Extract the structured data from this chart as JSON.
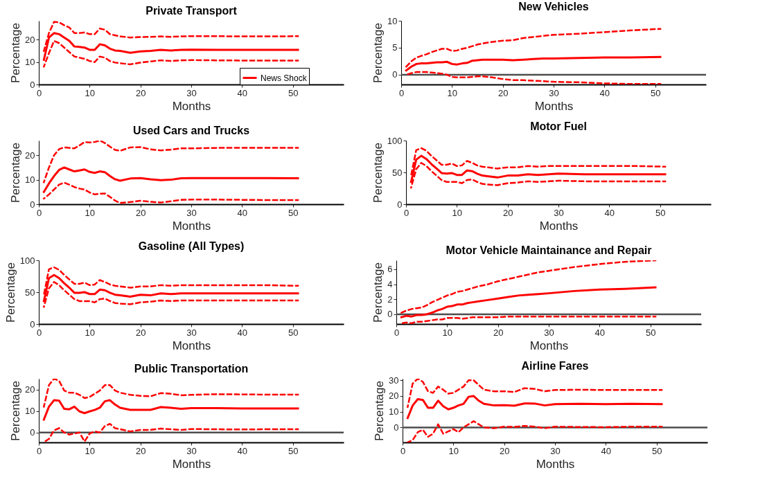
{
  "chart_data": [
    {
      "type": "line",
      "title": "Private Transport",
      "xlabel": "Months",
      "ylabel": "Percentage",
      "xlim": [
        0,
        60
      ],
      "xticks": [
        0,
        10,
        20,
        30,
        40,
        50
      ],
      "ylim": [
        0,
        28.5
      ],
      "yticks": [
        0,
        10,
        20
      ],
      "legend": "bottom right",
      "x": [
        1,
        2,
        3,
        4,
        5,
        6,
        7,
        8,
        9,
        10,
        11,
        12,
        13,
        14,
        15,
        16,
        18,
        20,
        22,
        24,
        26,
        28,
        30,
        35,
        40,
        45,
        51
      ],
      "series": [
        {
          "name": "News Shock",
          "color": "#ff0000",
          "values": [
            11,
            21,
            23,
            22.5,
            21,
            19.5,
            17,
            16.8,
            16.5,
            15.5,
            15.5,
            18,
            17.5,
            16,
            15.2,
            15,
            14.2,
            14.8,
            15,
            15.5,
            15.2,
            15.5,
            15.6,
            15.5,
            15.5,
            15.5,
            15.5
          ]
        },
        {
          "color": "#ff0000",
          "line_style": "dashed",
          "values": [
            15,
            23,
            28,
            27.8,
            26.5,
            25.5,
            23,
            23,
            23.3,
            22.5,
            22.5,
            25,
            24.5,
            22.5,
            22,
            21.5,
            21,
            21.2,
            21.3,
            21.5,
            21.3,
            21.5,
            21.6,
            21.6,
            21.5,
            21.5,
            21.6
          ]
        },
        {
          "color": "#ff0000",
          "line_style": "dashed",
          "values": [
            8,
            14,
            19.5,
            18.5,
            16.5,
            14.5,
            12.5,
            12,
            11.5,
            10.5,
            10,
            12.5,
            12,
            10.5,
            9.8,
            9.5,
            9,
            9.8,
            10.3,
            10.8,
            10.5,
            10.8,
            10.9,
            10.8,
            10.7,
            10.7,
            10.7
          ]
        }
      ]
    },
    {
      "type": "line",
      "title": "New Vehicles",
      "xlabel": "Months",
      "ylabel": "Percentage",
      "xlim": [
        0,
        60
      ],
      "xticks": [
        0,
        10,
        20,
        30,
        40,
        50
      ],
      "ylim": [
        -1.8,
        10
      ],
      "yticks": [
        0,
        5,
        10
      ],
      "ref_lines": [
        {
          "axis": "y",
          "value": 0,
          "color": "#4d4d4d"
        }
      ],
      "x": [
        1,
        2,
        3,
        4,
        5,
        6,
        7,
        8,
        9,
        10,
        11,
        12,
        13,
        14,
        15,
        16,
        18,
        20,
        22,
        24,
        26,
        28,
        30,
        35,
        40,
        45,
        51
      ],
      "series": [
        {
          "color": "#ff0000",
          "values": [
            0.8,
            1.5,
            2,
            2.1,
            2.1,
            2.2,
            2.3,
            2.3,
            2.4,
            2,
            1.9,
            2.1,
            2.2,
            2.6,
            2.7,
            2.8,
            2.8,
            2.8,
            2.7,
            2.8,
            2.9,
            3,
            3,
            3.1,
            3.2,
            3.2,
            3.3
          ]
        },
        {
          "color": "#ff0000",
          "line_style": "dashed",
          "values": [
            1.5,
            2.5,
            3.2,
            3.5,
            3.8,
            4.2,
            4.5,
            4.8,
            4.8,
            4.4,
            4.5,
            4.8,
            5,
            5.3,
            5.6,
            5.8,
            6.1,
            6.3,
            6.4,
            6.8,
            7,
            7.2,
            7.4,
            7.6,
            7.9,
            8.2,
            8.5
          ]
        },
        {
          "color": "#ff0000",
          "line_style": "dashed",
          "values": [
            0,
            0.3,
            0.5,
            0.5,
            0.5,
            0.4,
            0.3,
            0.2,
            0,
            -0.4,
            -0.5,
            -0.5,
            -0.5,
            -0.4,
            -0.3,
            -0.3,
            -0.5,
            -0.8,
            -1,
            -1,
            -1.1,
            -1.2,
            -1.3,
            -1.4,
            -1.6,
            -1.7,
            -1.7
          ]
        }
      ]
    },
    {
      "type": "line",
      "title": "Used Cars and Trucks",
      "xlabel": "Months",
      "ylabel": "Percentage",
      "xlim": [
        0,
        60
      ],
      "xticks": [
        0,
        10,
        20,
        30,
        40,
        50
      ],
      "ylim": [
        0,
        26
      ],
      "yticks": [
        0,
        10,
        20
      ],
      "x": [
        1,
        2,
        3,
        4,
        5,
        6,
        7,
        8,
        9,
        10,
        11,
        12,
        13,
        14,
        15,
        16,
        18,
        20,
        22,
        24,
        26,
        28,
        30,
        35,
        40,
        45,
        51
      ],
      "series": [
        {
          "color": "#ff0000",
          "values": [
            5,
            8.5,
            11.5,
            14,
            15,
            14.2,
            13.4,
            13.8,
            14.2,
            13.2,
            12.8,
            13.4,
            13.1,
            11.5,
            10.2,
            9.6,
            10.5,
            10.7,
            10.2,
            9.8,
            10,
            10.6,
            10.7,
            10.7,
            10.7,
            10.7,
            10.6
          ]
        },
        {
          "color": "#ff0000",
          "line_style": "dashed",
          "values": [
            9,
            15,
            20,
            22.5,
            23.2,
            23,
            22.8,
            24,
            25.4,
            25.2,
            25.4,
            26,
            25,
            23.5,
            22.2,
            21.8,
            23.2,
            23.3,
            22.4,
            22,
            22.3,
            22.8,
            22.8,
            23,
            23,
            23,
            23
          ]
        },
        {
          "color": "#ff0000",
          "line_style": "dashed",
          "values": [
            2.3,
            4,
            6,
            8,
            8.8,
            8,
            7,
            6.4,
            6,
            4.8,
            4,
            4.3,
            4.4,
            3,
            1.5,
            0.5,
            0.9,
            1.4,
            1,
            0.7,
            1.2,
            1.8,
            1.9,
            1.9,
            1.8,
            1.7,
            1.7
          ]
        }
      ]
    },
    {
      "type": "line",
      "title": "Motor Fuel",
      "xlabel": "Months",
      "ylabel": "Percentage",
      "xlim": [
        0,
        60
      ],
      "xticks": [
        0,
        10,
        20,
        30,
        40,
        50
      ],
      "ylim": [
        0,
        100
      ],
      "yticks": [
        0,
        50,
        100
      ],
      "x": [
        1,
        2,
        3,
        4,
        5,
        6,
        7,
        8,
        9,
        10,
        11,
        12,
        13,
        14,
        15,
        16,
        18,
        20,
        22,
        24,
        26,
        28,
        30,
        35,
        40,
        45,
        51
      ],
      "series": [
        {
          "color": "#ff0000",
          "values": [
            35,
            70,
            76,
            71,
            63,
            56,
            49,
            48,
            49,
            46,
            46,
            53,
            52,
            48,
            45,
            44,
            42,
            45,
            45,
            47,
            46,
            47,
            48,
            47,
            47,
            47,
            47
          ]
        },
        {
          "color": "#ff0000",
          "line_style": "dashed",
          "values": [
            45,
            85,
            88,
            84,
            76,
            69,
            62,
            62,
            64,
            60,
            61,
            68,
            65,
            61,
            59,
            58,
            56,
            58,
            58,
            60,
            59,
            60,
            60,
            60,
            60,
            60,
            59
          ]
        },
        {
          "color": "#ff0000",
          "line_style": "dashed",
          "values": [
            26,
            55,
            65,
            60,
            52,
            45,
            38,
            35,
            35,
            35,
            33,
            38,
            39,
            35,
            32,
            31,
            30,
            33,
            34,
            36,
            35,
            36,
            37,
            36,
            36,
            36,
            36
          ]
        }
      ]
    },
    {
      "type": "line",
      "title": "Gasoline (All Types)",
      "xlabel": "Months",
      "ylabel": "Percentage",
      "xlim": [
        0,
        60
      ],
      "xticks": [
        0,
        10,
        20,
        30,
        40,
        50
      ],
      "ylim": [
        0,
        100
      ],
      "yticks": [
        0,
        50,
        100
      ],
      "x": [
        1,
        2,
        3,
        4,
        5,
        6,
        7,
        8,
        9,
        10,
        11,
        12,
        13,
        14,
        15,
        16,
        18,
        20,
        22,
        24,
        26,
        28,
        30,
        35,
        40,
        45,
        51
      ],
      "series": [
        {
          "color": "#ff0000",
          "values": [
            36,
            72,
            77,
            72,
            64,
            57,
            49,
            49,
            50,
            47,
            47,
            54,
            53,
            49,
            46,
            45,
            43,
            46,
            45,
            48,
            47,
            48,
            48,
            48,
            48,
            48,
            48
          ]
        },
        {
          "color": "#ff0000",
          "line_style": "dashed",
          "values": [
            46,
            86,
            89,
            85,
            77,
            70,
            63,
            63,
            65,
            61,
            62,
            69,
            66,
            62,
            60,
            59,
            57,
            59,
            59,
            61,
            60,
            61,
            61,
            61,
            61,
            61,
            60
          ]
        },
        {
          "color": "#ff0000",
          "line_style": "dashed",
          "values": [
            27,
            56,
            66,
            61,
            53,
            46,
            39,
            36,
            36,
            36,
            34,
            39,
            40,
            36,
            33,
            32,
            31,
            34,
            35,
            37,
            36,
            37,
            37,
            37,
            37,
            37,
            37
          ]
        }
      ]
    },
    {
      "type": "line",
      "title": "Motor Vehicle Maintainance and Repair",
      "xlabel": "Months",
      "ylabel": "Percentage",
      "xlim": [
        0,
        60
      ],
      "xticks": [
        0,
        10,
        20,
        30,
        40,
        50
      ],
      "ylim": [
        -1.3,
        7.2
      ],
      "yticks": [
        0,
        2,
        4,
        6
      ],
      "ref_lines": [
        {
          "axis": "y",
          "value": 0,
          "color": "#4d4d4d"
        }
      ],
      "x": [
        1,
        2,
        3,
        4,
        5,
        6,
        7,
        8,
        9,
        10,
        11,
        12,
        13,
        14,
        15,
        16,
        18,
        20,
        22,
        24,
        26,
        28,
        30,
        35,
        40,
        45,
        51
      ],
      "series": [
        {
          "color": "#ff0000",
          "values": [
            -0.4,
            -0.2,
            -0.3,
            -0.1,
            -0.1,
            0,
            0.2,
            0.5,
            0.7,
            1,
            1.1,
            1.3,
            1.3,
            1.5,
            1.6,
            1.7,
            1.9,
            2.1,
            2.3,
            2.5,
            2.6,
            2.7,
            2.8,
            3.1,
            3.3,
            3.4,
            3.6
          ]
        },
        {
          "color": "#ff0000",
          "line_style": "dashed",
          "values": [
            0.2,
            0.5,
            0.7,
            0.8,
            0.9,
            1.2,
            1.6,
            1.9,
            2.2,
            2.5,
            2.7,
            3,
            3.1,
            3.3,
            3.5,
            3.7,
            4,
            4.4,
            4.7,
            5,
            5.3,
            5.6,
            5.8,
            6.3,
            6.7,
            7,
            7.2
          ]
        },
        {
          "color": "#ff0000",
          "line_style": "dashed",
          "values": [
            -1.2,
            -1.1,
            -1.2,
            -1,
            -1,
            -0.9,
            -0.8,
            -0.7,
            -0.7,
            -0.5,
            -0.5,
            -0.5,
            -0.6,
            -0.5,
            -0.4,
            -0.4,
            -0.4,
            -0.4,
            -0.3,
            -0.3,
            -0.3,
            -0.3,
            -0.3,
            -0.3,
            -0.3,
            -0.3,
            -0.3
          ]
        }
      ]
    },
    {
      "type": "line",
      "title": "Public Transportation",
      "xlabel": "Months",
      "ylabel": "Percentage",
      "xlim": [
        0,
        60
      ],
      "xticks": [
        0,
        10,
        20,
        30,
        40,
        50
      ],
      "ylim": [
        -4.6,
        25
      ],
      "yticks": [
        0,
        10,
        20
      ],
      "ref_lines": [
        {
          "axis": "y",
          "value": 0,
          "color": "#4d4d4d"
        }
      ],
      "x": [
        1,
        2,
        3,
        4,
        5,
        6,
        7,
        8,
        9,
        10,
        11,
        12,
        13,
        14,
        15,
        16,
        18,
        20,
        22,
        24,
        26,
        28,
        30,
        35,
        40,
        45,
        51
      ],
      "series": [
        {
          "color": "#ff0000",
          "values": [
            6,
            12,
            15,
            14.8,
            11,
            10.8,
            12,
            9.8,
            9,
            9.8,
            10.5,
            11.5,
            14.5,
            15,
            13,
            11.5,
            10.5,
            10.5,
            10.5,
            11.8,
            11.5,
            11,
            11.3,
            11.3,
            11.2,
            11.2,
            11.2
          ]
        },
        {
          "color": "#ff0000",
          "line_style": "dashed",
          "values": [
            12,
            22,
            25,
            24,
            19.5,
            18.5,
            18.5,
            17.5,
            16,
            16.5,
            18,
            19.5,
            22,
            22,
            19.5,
            18.5,
            17.5,
            17,
            16.8,
            18.3,
            18,
            17.3,
            17.5,
            17.8,
            17.7,
            17.6,
            17.6
          ]
        },
        {
          "color": "#ff0000",
          "line_style": "dashed",
          "values": [
            -4.5,
            -3,
            1,
            2,
            0,
            -1,
            -0.5,
            0,
            -4.2,
            -0.5,
            0.5,
            0,
            3,
            4,
            2,
            1.5,
            0.5,
            1.2,
            1.2,
            1.8,
            1.5,
            1.2,
            1.6,
            1.5,
            1.4,
            1.5,
            1.5
          ]
        }
      ]
    },
    {
      "type": "line",
      "title": "Airline Fares",
      "xlabel": "Months",
      "ylabel": "Percentage",
      "xlim": [
        0,
        60
      ],
      "xticks": [
        0,
        10,
        20,
        30,
        40,
        50
      ],
      "ylim": [
        -9.5,
        31
      ],
      "yticks": [
        0,
        10,
        20,
        30
      ],
      "ref_lines": [
        {
          "axis": "y",
          "value": 0,
          "color": "#4d4d4d"
        }
      ],
      "x": [
        1,
        2,
        3,
        4,
        5,
        6,
        7,
        8,
        9,
        10,
        11,
        12,
        13,
        14,
        15,
        16,
        18,
        20,
        22,
        24,
        26,
        28,
        30,
        35,
        40,
        45,
        51
      ],
      "series": [
        {
          "color": "#ff0000",
          "values": [
            6,
            14,
            18,
            17.5,
            12.5,
            12.5,
            17,
            13.5,
            11.5,
            12.5,
            14,
            15,
            19.5,
            20,
            17,
            15,
            14,
            14.2,
            13.8,
            15.3,
            15.2,
            14,
            14.8,
            15,
            14.8,
            15,
            14.8
          ]
        },
        {
          "color": "#ff0000",
          "line_style": "dashed",
          "values": [
            13,
            28,
            31,
            29,
            23,
            22,
            26,
            24,
            21.5,
            22,
            24,
            26,
            30,
            30,
            27,
            24,
            23,
            23,
            22.5,
            25,
            24.5,
            23,
            23.8,
            24,
            23.8,
            23.8,
            23.8
          ]
        },
        {
          "color": "#ff0000",
          "line_style": "dashed",
          "values": [
            -9.5,
            -8,
            -3,
            -1.5,
            -6,
            -4,
            2,
            -4,
            -2.5,
            -1,
            -3,
            0,
            2,
            4,
            2,
            0,
            -0.5,
            0.5,
            0.3,
            1,
            0.5,
            -0.5,
            0.5,
            0.3,
            0.2,
            0.5,
            0.5
          ]
        }
      ]
    }
  ]
}
